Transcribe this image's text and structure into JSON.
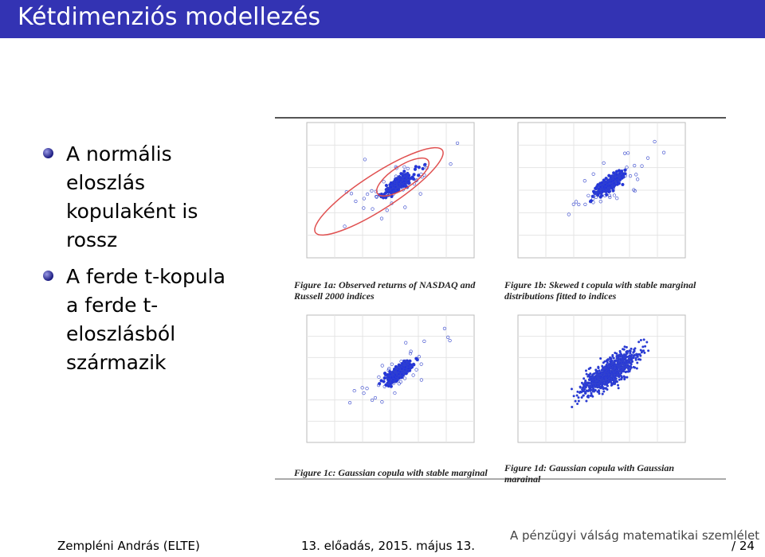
{
  "header": {
    "title": "Kétdimenziós modellezés"
  },
  "bullets": [
    "A normális eloszlás kopulaként is rossz",
    "A ferde t-kopula a ferde t-eloszlásból származik"
  ],
  "figure": {
    "captions": [
      "Figure 1a: Observed returns of NASDAQ and Russell 2000 indices",
      "Figure 1b: Skewed t copula with stable marginal distributions fitted to indices",
      "Figure 1c: Gaussian copula with stable marginal",
      "Figure 1d: Gaussian copula with Gaussian marginal"
    ]
  },
  "footer": {
    "author": "Zempléni András (ELTE)",
    "date": "13. előadás, 2015. május 13.",
    "title": "A pénzügyi válság matematikai szemlélet",
    "page": "/ 24"
  }
}
